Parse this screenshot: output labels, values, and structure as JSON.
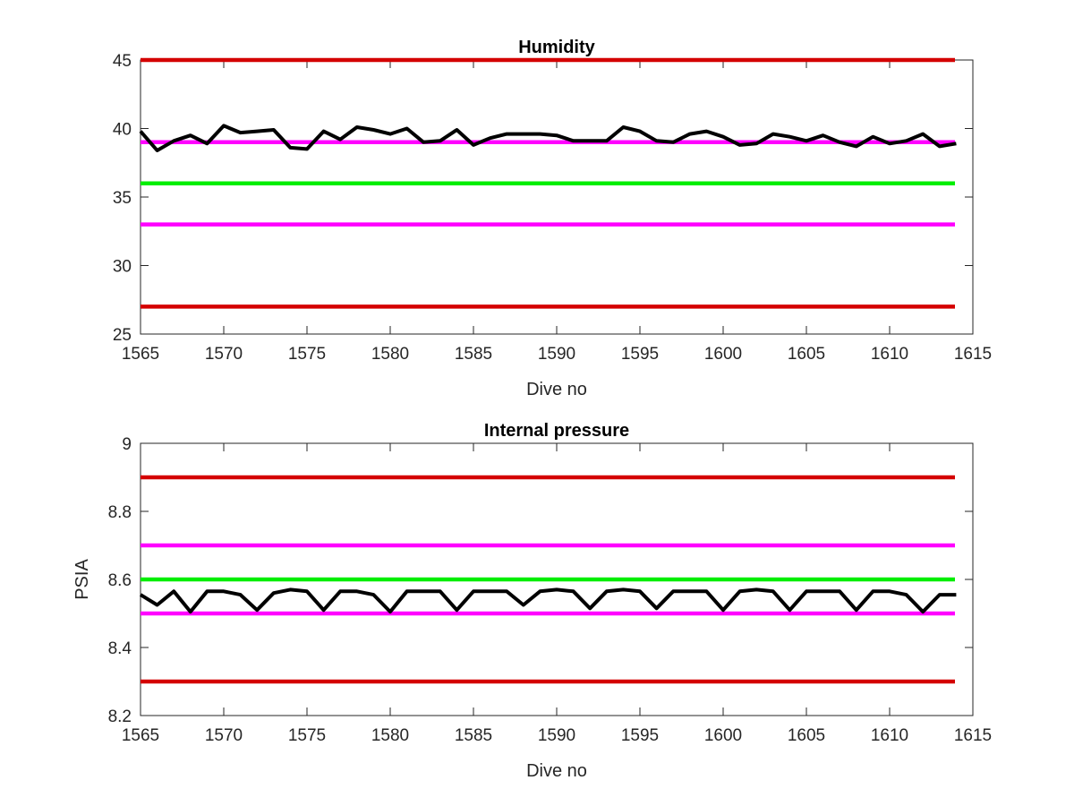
{
  "chart_data": [
    {
      "type": "line",
      "title": "Humidity",
      "xlabel": "Dive no",
      "ylabel": "",
      "xlim": [
        1565,
        1615
      ],
      "ylim": [
        25,
        45
      ],
      "xticks": [
        1565,
        1570,
        1575,
        1580,
        1585,
        1590,
        1595,
        1600,
        1605,
        1610,
        1615
      ],
      "yticks": [
        25,
        30,
        35,
        40,
        45
      ],
      "grid": false,
      "reference_lines": [
        {
          "y": 45,
          "color": "#d40000"
        },
        {
          "y": 39,
          "color": "#ff00ff"
        },
        {
          "y": 36,
          "color": "#00ee00"
        },
        {
          "y": 33,
          "color": "#ff00ff"
        },
        {
          "y": 27,
          "color": "#d40000"
        }
      ],
      "series": [
        {
          "color": "#000000",
          "x": [
            1565,
            1566,
            1567,
            1568,
            1569,
            1570,
            1571,
            1572,
            1573,
            1574,
            1575,
            1576,
            1577,
            1578,
            1579,
            1580,
            1581,
            1582,
            1583,
            1584,
            1585,
            1586,
            1587,
            1588,
            1589,
            1590,
            1591,
            1592,
            1593,
            1594,
            1595,
            1596,
            1597,
            1598,
            1599,
            1600,
            1601,
            1602,
            1603,
            1604,
            1605,
            1606,
            1607,
            1608,
            1609,
            1610,
            1611,
            1612,
            1613,
            1614
          ],
          "y": [
            39.8,
            38.4,
            39.1,
            39.5,
            38.9,
            40.2,
            39.7,
            39.8,
            39.9,
            38.6,
            38.5,
            39.8,
            39.2,
            40.1,
            39.9,
            39.6,
            40.0,
            39.0,
            39.1,
            39.9,
            38.8,
            39.3,
            39.6,
            39.6,
            39.6,
            39.5,
            39.1,
            39.1,
            39.1,
            40.1,
            39.8,
            39.1,
            39.0,
            39.6,
            39.8,
            39.4,
            38.8,
            38.9,
            39.6,
            39.4,
            39.1,
            39.5,
            39.0,
            38.7,
            39.4,
            38.9,
            39.1,
            39.6,
            38.7,
            38.9
          ]
        }
      ]
    },
    {
      "type": "line",
      "title": "Internal pressure",
      "xlabel": "Dive no",
      "ylabel": "PSIA",
      "xlim": [
        1565,
        1615
      ],
      "ylim": [
        8.2,
        9
      ],
      "xticks": [
        1565,
        1570,
        1575,
        1580,
        1585,
        1590,
        1595,
        1600,
        1605,
        1610,
        1615
      ],
      "yticks": [
        8.2,
        8.4,
        8.6,
        8.8,
        9
      ],
      "grid": false,
      "reference_lines": [
        {
          "y": 8.9,
          "color": "#d40000"
        },
        {
          "y": 8.7,
          "color": "#ff00ff"
        },
        {
          "y": 8.6,
          "color": "#00ee00"
        },
        {
          "y": 8.5,
          "color": "#ff00ff"
        },
        {
          "y": 8.3,
          "color": "#d40000"
        }
      ],
      "series": [
        {
          "color": "#000000",
          "x": [
            1565,
            1566,
            1567,
            1568,
            1569,
            1570,
            1571,
            1572,
            1573,
            1574,
            1575,
            1576,
            1577,
            1578,
            1579,
            1580,
            1581,
            1582,
            1583,
            1584,
            1585,
            1586,
            1587,
            1588,
            1589,
            1590,
            1591,
            1592,
            1593,
            1594,
            1595,
            1596,
            1597,
            1598,
            1599,
            1600,
            1601,
            1602,
            1603,
            1604,
            1605,
            1606,
            1607,
            1608,
            1609,
            1610,
            1611,
            1612,
            1613,
            1614
          ],
          "y": [
            8.555,
            8.525,
            8.565,
            8.505,
            8.565,
            8.565,
            8.555,
            8.51,
            8.56,
            8.57,
            8.565,
            8.51,
            8.565,
            8.565,
            8.555,
            8.505,
            8.565,
            8.565,
            8.565,
            8.51,
            8.565,
            8.565,
            8.565,
            8.525,
            8.565,
            8.57,
            8.565,
            8.515,
            8.565,
            8.57,
            8.565,
            8.515,
            8.565,
            8.565,
            8.565,
            8.51,
            8.565,
            8.57,
            8.565,
            8.51,
            8.565,
            8.565,
            8.565,
            8.51,
            8.565,
            8.565,
            8.555,
            8.505,
            8.555,
            8.555
          ]
        }
      ]
    }
  ]
}
